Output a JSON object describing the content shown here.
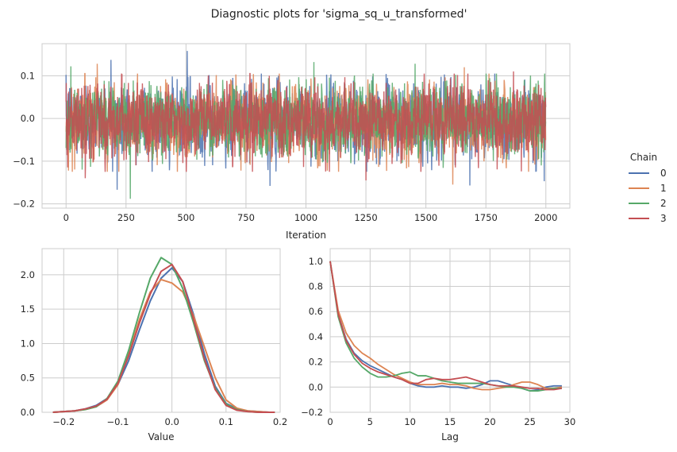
{
  "figure": {
    "title": "Diagnostic plots for 'sigma_sq_u_transformed'"
  },
  "legend": {
    "title": "Chain",
    "placement": "right",
    "entries": [
      {
        "label": "0",
        "color": "#4c72b0"
      },
      {
        "label": "1",
        "color": "#dd8452"
      },
      {
        "label": "2",
        "color": "#55a868"
      },
      {
        "label": "3",
        "color": "#c44e52"
      }
    ]
  },
  "chart_data": [
    {
      "type": "line",
      "name": "trace",
      "xlabel": "Iteration",
      "ylabel": "",
      "xlim": [
        -100,
        2100
      ],
      "ylim": [
        -0.21,
        0.175
      ],
      "xticks": [
        0,
        250,
        500,
        750,
        1000,
        1250,
        1500,
        1750,
        2000
      ],
      "xtick_labels": [
        "0",
        "250",
        "500",
        "750",
        "1000",
        "1250",
        "1500",
        "1750",
        "2000"
      ],
      "yticks": [
        0.1,
        0.0,
        -0.1,
        -0.2
      ],
      "ytick_labels": [
        "0.1",
        "0.0",
        "−0.1",
        "−0.2"
      ],
      "grid": true,
      "n_iterations": 2000,
      "series": [
        {
          "name": "0",
          "color": "#4c72b0",
          "mean": -0.005,
          "sd": 0.05,
          "extremes": [
            {
              "x": 505,
              "y": 0.158
            },
            {
              "x": 213,
              "y": -0.167
            },
            {
              "x": 187,
              "y": 0.137
            },
            {
              "x": 1683,
              "y": -0.157
            },
            {
              "x": 1993,
              "y": -0.147
            },
            {
              "x": 850,
              "y": -0.158
            }
          ]
        },
        {
          "name": "1",
          "color": "#dd8452",
          "mean": -0.005,
          "sd": 0.05,
          "extremes": [
            {
              "x": 130,
              "y": 0.128
            },
            {
              "x": 1612,
              "y": -0.155
            },
            {
              "x": 1660,
              "y": 0.12
            },
            {
              "x": 10,
              "y": -0.122
            }
          ]
        },
        {
          "name": "2",
          "color": "#55a868",
          "mean": -0.005,
          "sd": 0.05,
          "extremes": [
            {
              "x": 268,
              "y": -0.188
            },
            {
              "x": 1033,
              "y": 0.132
            },
            {
              "x": 1455,
              "y": 0.128
            },
            {
              "x": 20,
              "y": 0.122
            }
          ]
        },
        {
          "name": "3",
          "color": "#c44e52",
          "mean": -0.005,
          "sd": 0.05,
          "extremes": [
            {
              "x": 1250,
              "y": -0.145
            },
            {
              "x": 1865,
              "y": 0.11
            },
            {
              "x": 80,
              "y": -0.14
            }
          ]
        }
      ]
    },
    {
      "type": "line",
      "name": "density",
      "xlabel": "Value",
      "ylabel": "",
      "xlim": [
        -0.24,
        0.2
      ],
      "ylim": [
        0.0,
        2.38
      ],
      "xticks": [
        -0.2,
        -0.1,
        0.0,
        0.1,
        0.2
      ],
      "xtick_labels": [
        "−0.2",
        "−0.1",
        "0.0",
        "0.1",
        "0.2"
      ],
      "yticks": [
        0.0,
        0.5,
        1.0,
        1.5,
        2.0
      ],
      "ytick_labels": [
        "0.0",
        "0.5",
        "1.0",
        "1.5",
        "2.0"
      ],
      "grid": true,
      "x": [
        -0.22,
        -0.2,
        -0.18,
        -0.16,
        -0.14,
        -0.12,
        -0.1,
        -0.08,
        -0.06,
        -0.04,
        -0.02,
        0.0,
        0.02,
        0.04,
        0.06,
        0.08,
        0.1,
        0.12,
        0.14,
        0.16,
        0.18,
        0.19
      ],
      "series": [
        {
          "name": "0",
          "color": "#4c72b0",
          "values": [
            0.0,
            0.01,
            0.02,
            0.05,
            0.1,
            0.2,
            0.4,
            0.75,
            1.2,
            1.62,
            1.95,
            2.1,
            1.9,
            1.42,
            0.85,
            0.38,
            0.13,
            0.05,
            0.02,
            0.01,
            0.0,
            0.0
          ]
        },
        {
          "name": "1",
          "color": "#dd8452",
          "values": [
            0.0,
            0.01,
            0.02,
            0.04,
            0.08,
            0.18,
            0.4,
            0.85,
            1.35,
            1.75,
            1.93,
            1.88,
            1.75,
            1.4,
            0.95,
            0.5,
            0.18,
            0.06,
            0.02,
            0.01,
            0.0,
            0.0
          ]
        },
        {
          "name": "2",
          "color": "#55a868",
          "values": [
            0.0,
            0.01,
            0.02,
            0.04,
            0.08,
            0.2,
            0.45,
            0.9,
            1.45,
            1.95,
            2.25,
            2.15,
            1.8,
            1.3,
            0.75,
            0.35,
            0.12,
            0.04,
            0.01,
            0.0,
            0.0,
            0.0
          ]
        },
        {
          "name": "3",
          "color": "#c44e52",
          "values": [
            0.0,
            0.01,
            0.02,
            0.05,
            0.09,
            0.19,
            0.42,
            0.82,
            1.3,
            1.72,
            2.05,
            2.15,
            1.9,
            1.35,
            0.78,
            0.33,
            0.1,
            0.03,
            0.01,
            0.0,
            0.0,
            0.0
          ]
        }
      ]
    },
    {
      "type": "line",
      "name": "autocorrelation",
      "xlabel": "Lag",
      "ylabel": "",
      "xlim": [
        0,
        30
      ],
      "ylim": [
        -0.2,
        1.1
      ],
      "xticks": [
        0,
        5,
        10,
        15,
        20,
        25,
        30
      ],
      "xtick_labels": [
        "0",
        "5",
        "10",
        "15",
        "20",
        "25",
        "30"
      ],
      "yticks": [
        -0.2,
        0.0,
        0.2,
        0.4,
        0.6,
        0.8,
        1.0
      ],
      "ytick_labels": [
        "−0.2",
        "0.0",
        "0.2",
        "0.4",
        "0.6",
        "0.8",
        "1.0"
      ],
      "grid": true,
      "x": [
        0,
        1,
        2,
        3,
        4,
        5,
        6,
        7,
        8,
        9,
        10,
        11,
        12,
        13,
        14,
        15,
        16,
        17,
        18,
        19,
        20,
        21,
        22,
        23,
        24,
        25,
        26,
        27,
        28,
        29
      ],
      "series": [
        {
          "name": "0",
          "color": "#4c72b0",
          "values": [
            1.0,
            0.58,
            0.38,
            0.27,
            0.21,
            0.17,
            0.14,
            0.11,
            0.08,
            0.06,
            0.03,
            0.01,
            0.0,
            0.0,
            0.01,
            0.0,
            0.0,
            -0.01,
            0.0,
            0.02,
            0.05,
            0.05,
            0.03,
            0.01,
            -0.01,
            -0.03,
            -0.02,
            0.0,
            0.01,
            0.01
          ]
        },
        {
          "name": "1",
          "color": "#dd8452",
          "values": [
            1.0,
            0.61,
            0.43,
            0.33,
            0.27,
            0.23,
            0.18,
            0.14,
            0.1,
            0.07,
            0.04,
            0.02,
            0.02,
            0.02,
            0.03,
            0.02,
            0.02,
            0.01,
            -0.01,
            -0.02,
            -0.02,
            -0.01,
            0.0,
            0.02,
            0.04,
            0.04,
            0.02,
            -0.01,
            -0.01,
            0.0
          ]
        },
        {
          "name": "2",
          "color": "#55a868",
          "values": [
            1.0,
            0.56,
            0.35,
            0.23,
            0.16,
            0.11,
            0.08,
            0.08,
            0.09,
            0.11,
            0.12,
            0.09,
            0.09,
            0.07,
            0.05,
            0.04,
            0.03,
            0.03,
            0.03,
            0.03,
            0.02,
            0.01,
            0.0,
            0.0,
            -0.01,
            -0.03,
            -0.03,
            -0.02,
            -0.01,
            -0.01
          ]
        },
        {
          "name": "3",
          "color": "#c44e52",
          "values": [
            1.0,
            0.58,
            0.37,
            0.26,
            0.19,
            0.15,
            0.12,
            0.1,
            0.08,
            0.06,
            0.03,
            0.03,
            0.06,
            0.07,
            0.06,
            0.06,
            0.07,
            0.08,
            0.06,
            0.04,
            0.02,
            0.01,
            0.01,
            0.01,
            0.0,
            -0.01,
            -0.01,
            -0.02,
            -0.02,
            -0.01
          ]
        }
      ]
    }
  ]
}
